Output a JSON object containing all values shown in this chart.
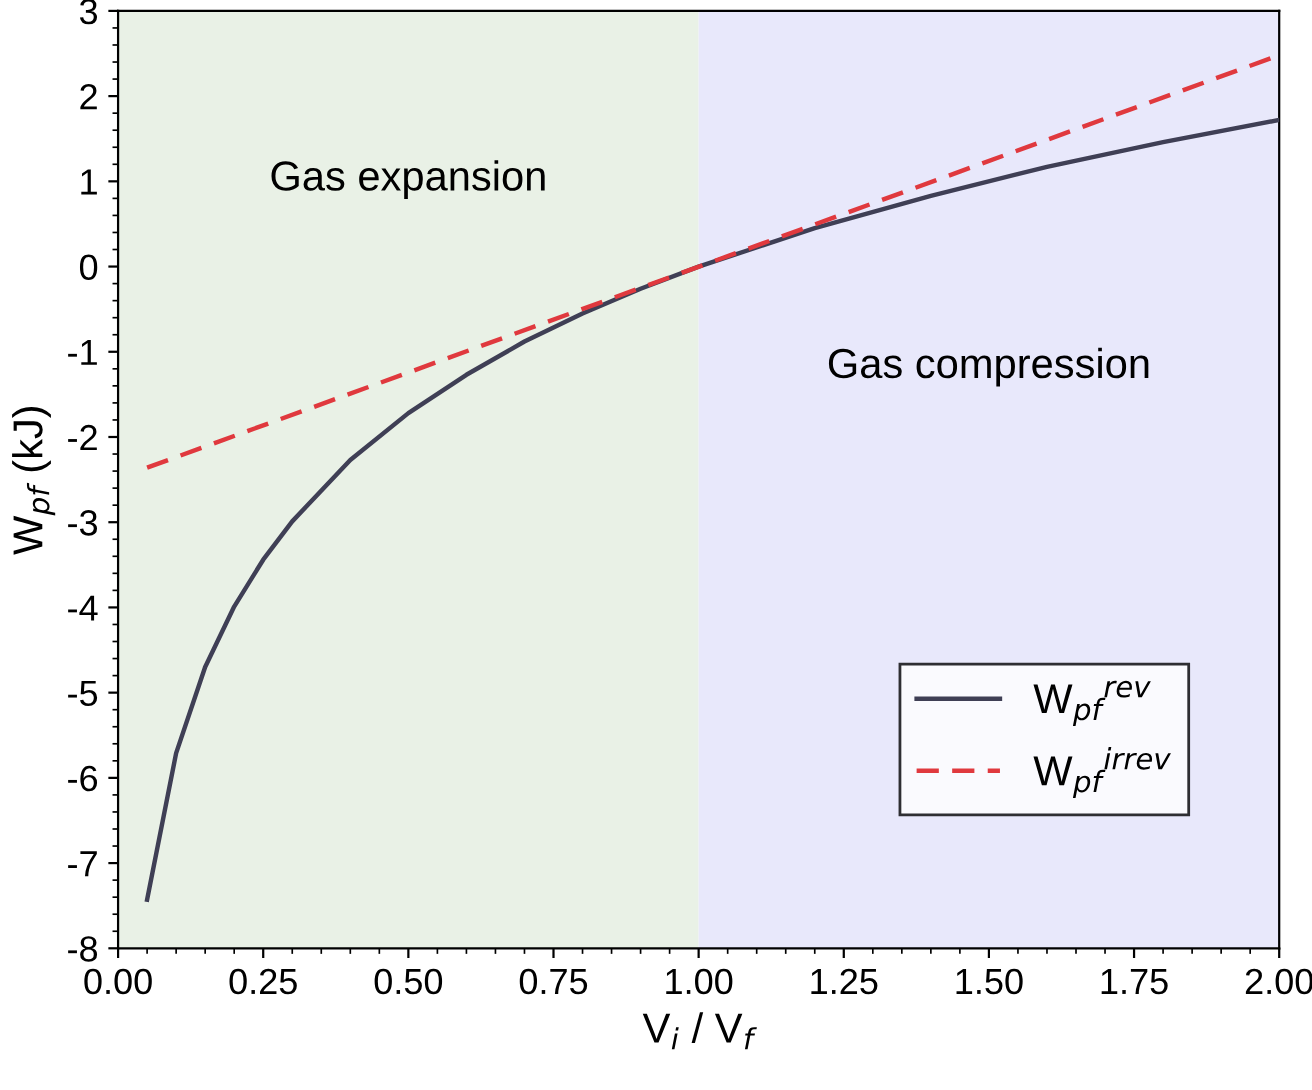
{
  "chart_data": {
    "type": "line",
    "xlabel": "V$_{i}$ / V$_{f}$",
    "ylabel": "W$_{pf}$ (kJ)",
    "series": [
      {
        "name": "W$_{pf}$$^{rev}$",
        "color": "#3f3f55",
        "line_style": "solid",
        "x": [
          0.05,
          0.1,
          0.15,
          0.2,
          0.25,
          0.3,
          0.4,
          0.5,
          0.6,
          0.7,
          0.8,
          0.9,
          1.0,
          1.2,
          1.4,
          1.6,
          1.8,
          2.0
        ],
        "values": [
          -7.43,
          -5.71,
          -4.7,
          -3.99,
          -3.44,
          -2.99,
          -2.27,
          -1.72,
          -1.27,
          -0.88,
          -0.55,
          -0.26,
          0,
          0.45,
          0.83,
          1.17,
          1.46,
          1.72
        ]
      },
      {
        "name": "W$_{pf}$$^{irrev}$",
        "color": "#e0393e",
        "line_style": "dashed",
        "x": [
          0.05,
          2.0
        ],
        "values": [
          -2.36,
          2.48
        ]
      }
    ],
    "bands": [
      {
        "axis": "x",
        "from": 0,
        "to": 1,
        "label": "Gas expansion",
        "color": "#e9f1e6"
      },
      {
        "axis": "x",
        "from": 1,
        "to": 2,
        "label": "Gas compression",
        "color": "#e8e8fb"
      }
    ],
    "xlim": [
      0,
      2
    ],
    "ylim": [
      -8,
      3
    ],
    "xticks": [
      {
        "value": 0,
        "label": "0.00"
      },
      {
        "value": 0.25,
        "label": "0.25"
      },
      {
        "value": 0.5,
        "label": "0.50"
      },
      {
        "value": 0.75,
        "label": "0.75"
      },
      {
        "value": 1,
        "label": "1.00"
      },
      {
        "value": 1.25,
        "label": "1.25"
      },
      {
        "value": 1.5,
        "label": "1.50"
      },
      {
        "value": 1.75,
        "label": "1.75"
      },
      {
        "value": 2,
        "label": "2.00"
      }
    ],
    "yticks": [
      -8,
      -7,
      -6,
      -5,
      -4,
      -3,
      -2,
      -1,
      0,
      1,
      2,
      3
    ],
    "grid": false,
    "legend": "bottom right",
    "marker": "none"
  }
}
